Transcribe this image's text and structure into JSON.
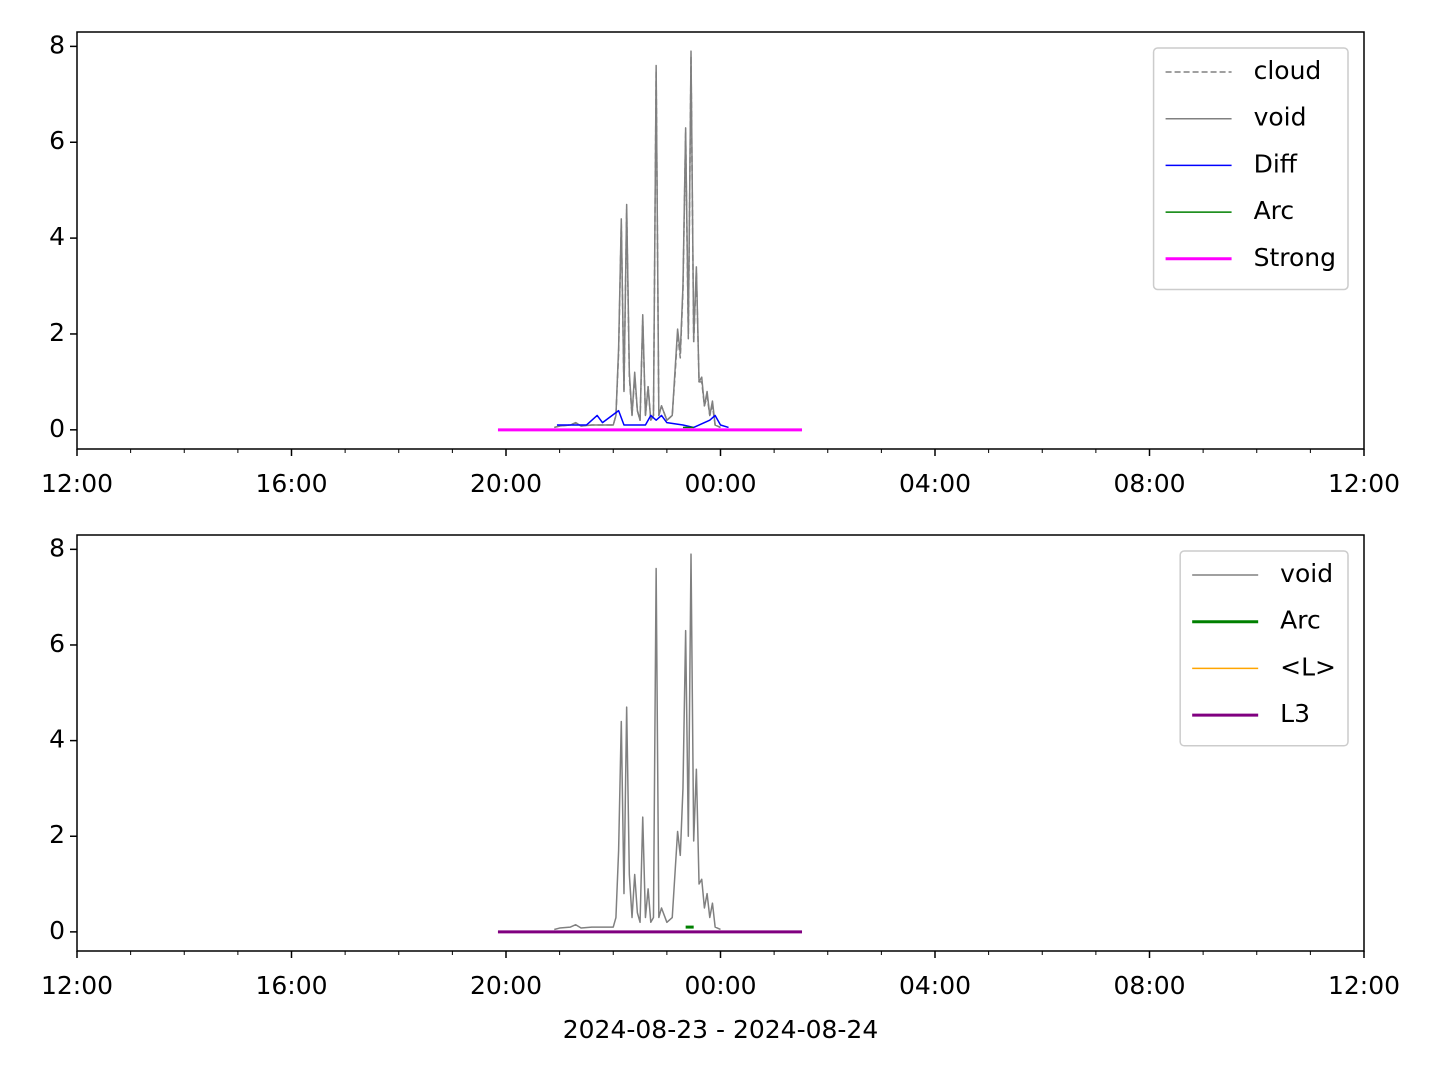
{
  "chart_data": [
    {
      "type": "line",
      "legend": "upper right",
      "xlim": [
        12,
        36
      ],
      "ylim": [
        -0.4,
        8.3
      ],
      "xticks": [
        {
          "value": 12,
          "label": "12:00"
        },
        {
          "value": 16,
          "label": "16:00"
        },
        {
          "value": 20,
          "label": "20:00"
        },
        {
          "value": 24,
          "label": "00:00"
        },
        {
          "value": 28,
          "label": "04:00"
        },
        {
          "value": 32,
          "label": "08:00"
        },
        {
          "value": 36,
          "label": "12:00"
        }
      ],
      "xminorticks": [
        13,
        14,
        15,
        17,
        18,
        19,
        21,
        22,
        23,
        25,
        26,
        27,
        29,
        30,
        31,
        33,
        34,
        35
      ],
      "yticks": [
        0,
        2,
        4,
        6,
        8
      ],
      "series": [
        {
          "name": "cloud",
          "color": "#808080",
          "width": 1.5,
          "dash": true,
          "x": [
            20.9,
            21.0,
            21.2,
            21.3,
            21.4,
            21.6,
            21.8,
            22.0,
            22.05,
            22.1,
            22.15,
            22.2,
            22.25,
            22.3,
            22.35,
            22.4,
            22.45,
            22.5,
            22.55,
            22.6,
            22.65,
            22.7,
            22.75,
            22.8,
            22.85,
            22.9,
            23.0,
            23.1,
            23.15,
            23.2,
            23.25,
            23.3,
            23.35,
            23.4,
            23.45,
            23.5,
            23.55,
            23.6,
            23.65,
            23.7,
            23.75,
            23.8,
            23.85,
            23.9,
            24.0
          ],
          "values": [
            0.05,
            0.08,
            0.1,
            0.15,
            0.08,
            0.1,
            0.1,
            0.1,
            0.3,
            1.6,
            4.3,
            0.8,
            4.6,
            1.1,
            0.3,
            1.1,
            0.4,
            0.2,
            2.3,
            0.3,
            0.9,
            0.2,
            0.3,
            7.5,
            0.3,
            0.5,
            0.2,
            0.3,
            1.1,
            2.0,
            1.5,
            2.9,
            6.2,
            1.9,
            7.8,
            1.8,
            3.3,
            1.0,
            1.0,
            0.5,
            0.7,
            0.3,
            0.5,
            0.1,
            0.05
          ]
        },
        {
          "name": "void",
          "color": "#808080",
          "width": 1.5,
          "dash": false,
          "x": [
            20.9,
            21.0,
            21.2,
            21.3,
            21.4,
            21.6,
            21.8,
            22.0,
            22.05,
            22.1,
            22.15,
            22.2,
            22.25,
            22.3,
            22.35,
            22.4,
            22.45,
            22.5,
            22.55,
            22.6,
            22.65,
            22.7,
            22.75,
            22.8,
            22.85,
            22.9,
            23.0,
            23.1,
            23.15,
            23.2,
            23.25,
            23.3,
            23.35,
            23.4,
            23.45,
            23.5,
            23.55,
            23.6,
            23.65,
            23.7,
            23.75,
            23.8,
            23.85,
            23.9,
            24.0
          ],
          "values": [
            0.05,
            0.08,
            0.1,
            0.15,
            0.08,
            0.1,
            0.1,
            0.1,
            0.3,
            1.7,
            4.4,
            0.8,
            4.7,
            1.2,
            0.3,
            1.2,
            0.4,
            0.2,
            2.4,
            0.3,
            0.9,
            0.2,
            0.3,
            7.6,
            0.3,
            0.5,
            0.2,
            0.3,
            1.2,
            2.1,
            1.6,
            3.0,
            6.3,
            2.0,
            7.9,
            1.9,
            3.4,
            1.0,
            1.1,
            0.5,
            0.8,
            0.3,
            0.6,
            0.1,
            0.05
          ]
        },
        {
          "name": "Diff",
          "color": "#0000ff",
          "width": 1.5,
          "dash": false,
          "x": [
            20.95,
            21.5,
            21.7,
            21.8,
            22.1,
            22.2,
            22.6,
            22.7,
            22.8,
            22.9,
            23.0,
            23.3,
            23.5,
            23.8,
            23.9,
            24.0,
            24.15
          ],
          "values": [
            0.1,
            0.1,
            0.3,
            0.15,
            0.4,
            0.1,
            0.1,
            0.3,
            0.2,
            0.3,
            0.15,
            0.1,
            0.05,
            0.2,
            0.3,
            0.1,
            0.05
          ]
        },
        {
          "name": "Arc",
          "color": "#008000",
          "width": 1.5,
          "dash": false,
          "x": [
            23.3,
            23.5
          ],
          "values": [
            0.05,
            0.05
          ]
        },
        {
          "name": "Strong",
          "color": "#ff00ff",
          "width": 3,
          "dash": false,
          "x": [
            19.85,
            25.52
          ],
          "values": [
            0,
            0
          ]
        }
      ]
    },
    {
      "type": "line",
      "legend": "upper right",
      "xlabel": "2024-08-23 - 2024-08-24",
      "xlim": [
        12,
        36
      ],
      "ylim": [
        -0.4,
        8.3
      ],
      "xticks": [
        {
          "value": 12,
          "label": "12:00"
        },
        {
          "value": 16,
          "label": "16:00"
        },
        {
          "value": 20,
          "label": "20:00"
        },
        {
          "value": 24,
          "label": "00:00"
        },
        {
          "value": 28,
          "label": "04:00"
        },
        {
          "value": 32,
          "label": "08:00"
        },
        {
          "value": 36,
          "label": "12:00"
        }
      ],
      "xminorticks": [
        13,
        14,
        15,
        17,
        18,
        19,
        21,
        22,
        23,
        25,
        26,
        27,
        29,
        30,
        31,
        33,
        34,
        35
      ],
      "yticks": [
        0,
        2,
        4,
        6,
        8
      ],
      "series": [
        {
          "name": "void",
          "color": "#808080",
          "width": 1.5,
          "dash": false,
          "x": [
            20.9,
            21.0,
            21.2,
            21.3,
            21.4,
            21.6,
            21.8,
            22.0,
            22.05,
            22.1,
            22.15,
            22.2,
            22.25,
            22.3,
            22.35,
            22.4,
            22.45,
            22.5,
            22.55,
            22.6,
            22.65,
            22.7,
            22.75,
            22.8,
            22.85,
            22.9,
            23.0,
            23.1,
            23.15,
            23.2,
            23.25,
            23.3,
            23.35,
            23.4,
            23.45,
            23.5,
            23.55,
            23.6,
            23.65,
            23.7,
            23.75,
            23.8,
            23.85,
            23.9,
            24.0
          ],
          "values": [
            0.05,
            0.08,
            0.1,
            0.15,
            0.08,
            0.1,
            0.1,
            0.1,
            0.3,
            1.7,
            4.4,
            0.8,
            4.7,
            1.2,
            0.3,
            1.2,
            0.4,
            0.2,
            2.4,
            0.3,
            0.9,
            0.2,
            0.3,
            7.6,
            0.3,
            0.5,
            0.2,
            0.3,
            1.2,
            2.1,
            1.6,
            3.0,
            6.3,
            2.0,
            7.9,
            1.9,
            3.4,
            1.0,
            1.1,
            0.5,
            0.8,
            0.3,
            0.6,
            0.1,
            0.05
          ]
        },
        {
          "name": "Arc",
          "color": "#008000",
          "width": 3,
          "dash": false,
          "x": [
            23.35,
            23.5
          ],
          "values": [
            0.1,
            0.1
          ]
        },
        {
          "name": "<L>",
          "color": "#ffa500",
          "width": 1.5,
          "dash": false,
          "x": [
            19.85,
            25.52
          ],
          "values": [
            0,
            0
          ]
        },
        {
          "name": "L3",
          "color": "#800080",
          "width": 3,
          "dash": false,
          "x": [
            19.85,
            25.52
          ],
          "values": [
            0,
            0
          ]
        }
      ]
    }
  ]
}
